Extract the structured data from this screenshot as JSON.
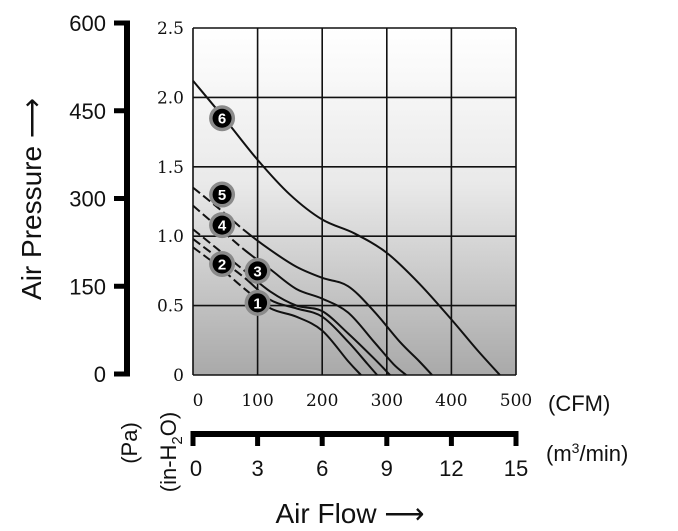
{
  "chart_data": {
    "type": "line",
    "title": "",
    "ylabel": "Air Pressure ⟶",
    "xlabel": "Air Flow ⟶",
    "y_unit_outer": "(Pa)",
    "y_unit_inner": "(in-H2O)",
    "x_unit_inner": "(CFM)",
    "x_unit_outer": "(m3/min)",
    "y_ticks_inner": [
      "0",
      "0.5",
      "1.0",
      "1.5",
      "2.0",
      "2.5"
    ],
    "y_ticks_outer": [
      "0",
      "150",
      "300",
      "450",
      "600"
    ],
    "x_ticks_inner": [
      "0",
      "100",
      "200",
      "300",
      "400",
      "500"
    ],
    "x_ticks_outer": [
      "0",
      "3",
      "6",
      "9",
      "12",
      "15"
    ],
    "xlim_cfm": [
      0,
      500
    ],
    "ylim_inH2O": [
      0,
      2.5
    ],
    "grid": true,
    "series": [
      {
        "name": "1",
        "x": [
          0,
          40,
          80,
          120,
          160,
          200,
          240,
          260
        ],
        "y": [
          0.92,
          0.78,
          0.62,
          0.48,
          0.42,
          0.32,
          0.1,
          0
        ]
      },
      {
        "name": "2",
        "x": [
          0,
          40,
          80,
          120,
          160,
          200,
          240,
          270,
          285
        ],
        "y": [
          0.98,
          0.84,
          0.7,
          0.54,
          0.48,
          0.42,
          0.24,
          0.08,
          0
        ]
      },
      {
        "name": "3",
        "x": [
          0,
          40,
          80,
          120,
          160,
          200,
          240,
          280,
          305
        ],
        "y": [
          1.05,
          0.9,
          0.75,
          0.6,
          0.5,
          0.46,
          0.3,
          0.12,
          0
        ]
      },
      {
        "name": "4",
        "x": [
          0,
          40,
          80,
          120,
          160,
          200,
          240,
          280,
          310,
          330
        ],
        "y": [
          1.22,
          1.06,
          0.9,
          0.76,
          0.62,
          0.55,
          0.45,
          0.24,
          0.08,
          0
        ]
      },
      {
        "name": "5",
        "x": [
          0,
          40,
          80,
          120,
          160,
          200,
          240,
          280,
          320,
          350,
          370
        ],
        "y": [
          1.35,
          1.2,
          1.04,
          0.9,
          0.78,
          0.7,
          0.64,
          0.46,
          0.24,
          0.1,
          0
        ]
      },
      {
        "name": "6",
        "x": [
          0,
          50,
          100,
          150,
          200,
          250,
          300,
          350,
          400,
          440,
          475
        ],
        "y": [
          2.12,
          1.84,
          1.55,
          1.3,
          1.12,
          1.02,
          0.88,
          0.66,
          0.4,
          0.18,
          0
        ]
      }
    ],
    "markers": [
      {
        "label": "6",
        "x": 45,
        "y": 1.85
      },
      {
        "label": "5",
        "x": 45,
        "y": 1.3
      },
      {
        "label": "4",
        "x": 45,
        "y": 1.08
      },
      {
        "label": "3",
        "x": 100,
        "y": 0.75
      },
      {
        "label": "2",
        "x": 45,
        "y": 0.8
      },
      {
        "label": "1",
        "x": 100,
        "y": 0.52
      }
    ]
  }
}
